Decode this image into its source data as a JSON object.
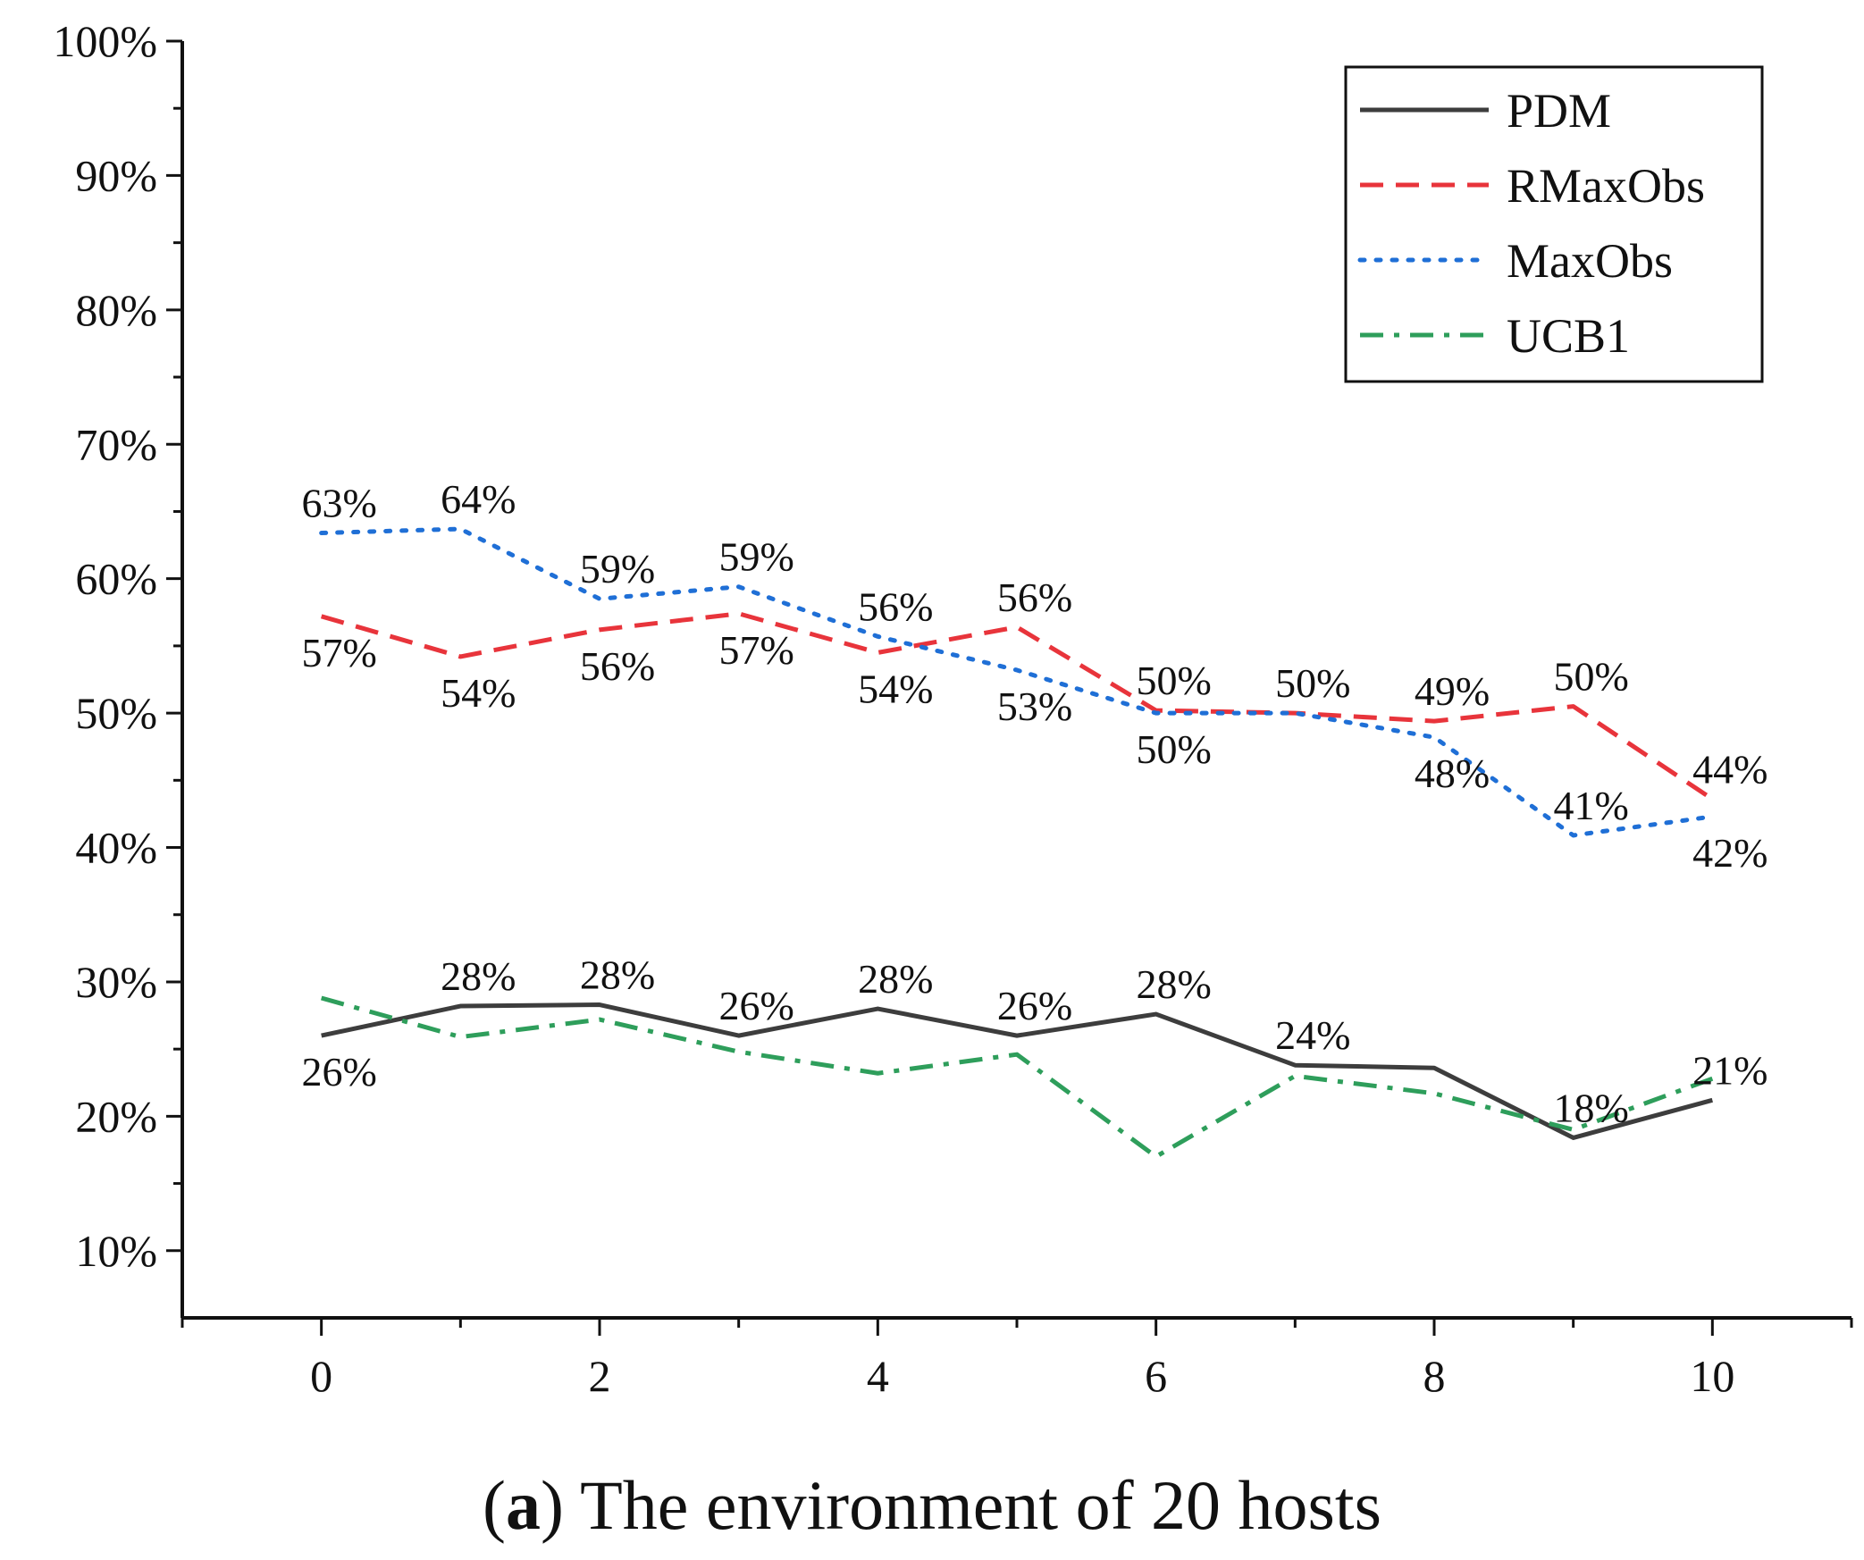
{
  "chart_data": {
    "type": "line",
    "title": "",
    "xlabel": "",
    "ylabel": "",
    "x": [
      0,
      1,
      2,
      3,
      4,
      5,
      6,
      7,
      8,
      9,
      10
    ],
    "xlim": [
      -1,
      11
    ],
    "ylim": [
      5,
      100
    ],
    "x_ticks": [
      "0",
      "2",
      "4",
      "6",
      "8",
      "10"
    ],
    "y_ticks": [
      "10%",
      "20%",
      "30%",
      "40%",
      "50%",
      "60%",
      "70%",
      "80%",
      "90%",
      "100%"
    ],
    "grid": false,
    "legend_position": "top-right",
    "series": [
      {
        "name": "PDM",
        "color": "#3d3d3d",
        "style": "solid",
        "values": [
          26,
          28.2,
          28.3,
          26,
          28,
          26,
          27.6,
          23.8,
          23.6,
          18.4,
          21.2
        ],
        "labels": [
          "26%",
          "28%",
          "28%",
          "26%",
          "28%",
          "26%",
          "28%",
          "24%",
          "",
          "18%",
          "21%"
        ]
      },
      {
        "name": "RMaxObs",
        "color": "#e8343b",
        "style": "dashed",
        "values": [
          57.2,
          54.2,
          56.2,
          57.4,
          54.5,
          56.4,
          50.2,
          50,
          49.4,
          50.5,
          43.6
        ],
        "labels": [
          "57%",
          "54%",
          "56%",
          "57%",
          "54%",
          "56%",
          "50%",
          "50%",
          "49%",
          "50%",
          "44%"
        ]
      },
      {
        "name": "MaxObs",
        "color": "#1f6fd6",
        "style": "dotted",
        "values": [
          63.4,
          63.7,
          58.5,
          59.4,
          55.7,
          53.2,
          50,
          50,
          48.2,
          40.9,
          42.3
        ],
        "labels": [
          "63%",
          "64%",
          "59%",
          "59%",
          "56%",
          "53%",
          "50%",
          "",
          "48%",
          "41%",
          "42%"
        ]
      },
      {
        "name": "UCB1",
        "color": "#2e9e5b",
        "style": "dashdot",
        "values": [
          28.8,
          25.9,
          27.2,
          24.8,
          23.2,
          24.6,
          17,
          23,
          21.7,
          19,
          22.8
        ],
        "labels": [
          "",
          "",
          "",
          "",
          "",
          "",
          "",
          "",
          "",
          "",
          ""
        ]
      }
    ]
  },
  "caption": {
    "label": "a",
    "open": "(",
    "close": ")",
    "text": " The environment of 20 hosts"
  }
}
